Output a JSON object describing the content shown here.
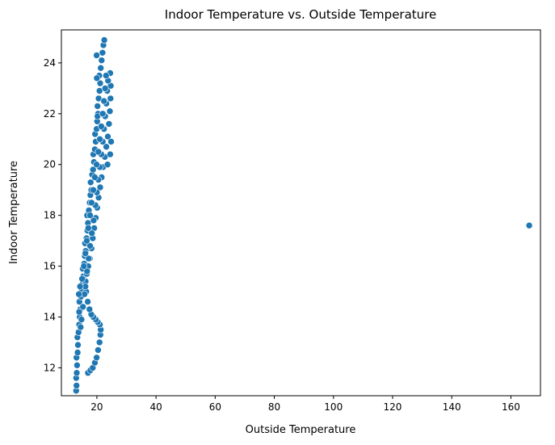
{
  "chart_data": {
    "type": "scatter",
    "title": "Indoor Temperature vs. Outside Temperature",
    "xlabel": "Outside Temperature",
    "ylabel": "Indoor Temperature",
    "xlim": [
      8,
      170
    ],
    "ylim": [
      10.9,
      25.3
    ],
    "xticks": [
      20,
      40,
      60,
      80,
      100,
      120,
      140,
      160
    ],
    "yticks": [
      12,
      14,
      16,
      18,
      20,
      22,
      24
    ],
    "grid": false,
    "legend": "none",
    "marker_color": "#1f77b4",
    "marker_edge_color": "#ffffff",
    "series": [
      {
        "points": [
          [
            13.0,
            11.1
          ],
          [
            13.1,
            11.3
          ],
          [
            13.0,
            11.6
          ],
          [
            13.2,
            11.8
          ],
          [
            13.3,
            12.1
          ],
          [
            13.1,
            12.4
          ],
          [
            13.5,
            12.6
          ],
          [
            13.6,
            12.9
          ],
          [
            13.4,
            13.2
          ],
          [
            13.8,
            13.4
          ],
          [
            14.0,
            13.7
          ],
          [
            14.2,
            14.0
          ],
          [
            14.4,
            14.3
          ],
          [
            14.1,
            14.6
          ],
          [
            14.6,
            14.8
          ],
          [
            14.9,
            15.1
          ],
          [
            15.1,
            15.3
          ],
          [
            15.4,
            15.6
          ],
          [
            15.2,
            15.9
          ],
          [
            15.7,
            16.1
          ],
          [
            15.9,
            16.4
          ],
          [
            16.2,
            16.6
          ],
          [
            16.0,
            16.9
          ],
          [
            16.5,
            17.1
          ],
          [
            16.8,
            17.4
          ],
          [
            17.0,
            17.7
          ],
          [
            16.7,
            18.0
          ],
          [
            17.3,
            18.2
          ],
          [
            17.6,
            18.5
          ],
          [
            17.8,
            18.8
          ],
          [
            18.1,
            19.0
          ],
          [
            17.9,
            19.3
          ],
          [
            18.4,
            19.6
          ],
          [
            18.7,
            19.8
          ],
          [
            19.0,
            20.1
          ],
          [
            18.8,
            20.4
          ],
          [
            19.3,
            20.6
          ],
          [
            19.6,
            20.9
          ],
          [
            19.4,
            21.2
          ],
          [
            19.9,
            21.4
          ],
          [
            20.1,
            21.7
          ],
          [
            20.4,
            22.0
          ],
          [
            20.2,
            22.3
          ],
          [
            20.6,
            22.6
          ],
          [
            20.9,
            22.9
          ],
          [
            21.1,
            23.2
          ],
          [
            20.8,
            23.5
          ],
          [
            21.3,
            23.8
          ],
          [
            21.6,
            24.1
          ],
          [
            21.9,
            24.4
          ],
          [
            22.2,
            24.7
          ],
          [
            22.5,
            24.9
          ],
          [
            19.9,
            24.3
          ],
          [
            20.0,
            23.4
          ],
          [
            20.2,
            21.9
          ],
          [
            17.0,
            11.8
          ],
          [
            17.8,
            11.9
          ],
          [
            18.6,
            12.0
          ],
          [
            19.3,
            12.2
          ],
          [
            19.9,
            12.4
          ],
          [
            20.4,
            12.7
          ],
          [
            20.9,
            13.0
          ],
          [
            21.2,
            13.3
          ],
          [
            21.3,
            13.5
          ],
          [
            21.0,
            13.7
          ],
          [
            20.3,
            13.8
          ],
          [
            19.6,
            13.9
          ],
          [
            18.8,
            14.0
          ],
          [
            18.1,
            14.1
          ],
          [
            17.5,
            14.3
          ],
          [
            16.9,
            14.6
          ],
          [
            16.4,
            15.0
          ],
          [
            16.2,
            15.4
          ],
          [
            16.6,
            15.7
          ],
          [
            17.1,
            16.0
          ],
          [
            17.6,
            16.3
          ],
          [
            18.2,
            16.7
          ],
          [
            18.6,
            17.1
          ],
          [
            19.1,
            17.5
          ],
          [
            19.6,
            17.9
          ],
          [
            20.1,
            18.3
          ],
          [
            20.6,
            18.7
          ],
          [
            21.1,
            19.1
          ],
          [
            21.6,
            19.5
          ],
          [
            22.1,
            19.9
          ],
          [
            22.7,
            20.3
          ],
          [
            23.2,
            20.7
          ],
          [
            23.7,
            21.1
          ],
          [
            24.1,
            21.6
          ],
          [
            24.4,
            22.1
          ],
          [
            24.6,
            22.6
          ],
          [
            24.7,
            23.1
          ],
          [
            24.5,
            23.6
          ],
          [
            24.8,
            20.9
          ],
          [
            24.5,
            20.4
          ],
          [
            23.6,
            20.0
          ],
          [
            14.5,
            13.6
          ],
          [
            14.8,
            13.9
          ],
          [
            15.3,
            14.4
          ],
          [
            15.8,
            14.9
          ],
          [
            16.1,
            15.2
          ],
          [
            16.7,
            15.8
          ],
          [
            17.2,
            16.3
          ],
          [
            17.7,
            16.8
          ],
          [
            18.3,
            17.3
          ],
          [
            18.9,
            17.8
          ],
          [
            19.5,
            18.4
          ],
          [
            20.0,
            18.9
          ],
          [
            20.5,
            19.4
          ],
          [
            21.0,
            19.9
          ],
          [
            21.5,
            20.4
          ],
          [
            22.0,
            20.9
          ],
          [
            22.4,
            21.4
          ],
          [
            22.8,
            21.9
          ],
          [
            23.2,
            22.4
          ],
          [
            23.5,
            22.9
          ],
          [
            23.8,
            23.3
          ],
          [
            15.0,
            15.5
          ],
          [
            15.6,
            16.0
          ],
          [
            16.1,
            16.5
          ],
          [
            16.6,
            17.0
          ],
          [
            17.1,
            17.5
          ],
          [
            17.7,
            18.0
          ],
          [
            18.2,
            18.5
          ],
          [
            18.8,
            19.0
          ],
          [
            19.3,
            19.5
          ],
          [
            19.9,
            20.0
          ],
          [
            20.5,
            20.5
          ],
          [
            21.0,
            21.0
          ],
          [
            21.5,
            21.5
          ],
          [
            22.0,
            22.0
          ],
          [
            22.4,
            22.5
          ],
          [
            22.8,
            23.0
          ],
          [
            23.1,
            23.5
          ],
          [
            13.9,
            14.9
          ],
          [
            14.3,
            15.2
          ],
          [
            14.0,
            14.2
          ],
          [
            166.2,
            17.6
          ]
        ]
      }
    ]
  }
}
